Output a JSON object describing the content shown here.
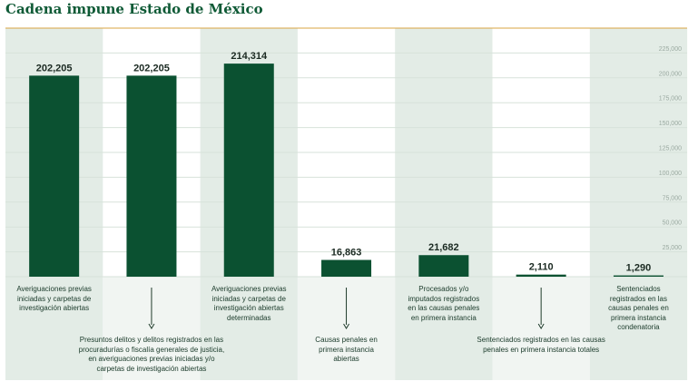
{
  "chart_data": {
    "type": "bar",
    "title": "Cadena impune Estado de México",
    "categories": [
      "Averiguaciones previas iniciadas y carpetas de investigación abiertas",
      "Presuntos delitos y delitos registrados en las procuradurías o fiscalía generales de justicia, en averiguaciones previas iniciadas y/o carpetas de investigación abiertas",
      "Averiguaciones previas iniciadas y carpetas de investigación abiertas determinadas",
      "Causas penales en primera instancia abiertas",
      "Procesados y/o imputados registrados en las causas penales en primera instancia",
      "Sentenciados registrados en las causas penales en primera instancia totales",
      "Sentenciados registrados en las causas penales en primera instancia condenatoria"
    ],
    "values": [
      202205,
      202205,
      214314,
      16863,
      21682,
      2110,
      1290
    ],
    "value_labels": [
      "202,205",
      "202,205",
      "214,314",
      "16,863",
      "21,682",
      "2,110",
      "1,290"
    ],
    "ylim": [
      0,
      250000
    ],
    "yticks": [
      25000,
      50000,
      75000,
      100000,
      125000,
      150000,
      175000,
      200000,
      225000
    ],
    "ytick_labels": [
      "25,000",
      "50,000",
      "75,000",
      "100,000",
      "125,000",
      "150,000",
      "175,000",
      "200,000",
      "225,000"
    ],
    "grid": true,
    "xlabel": "",
    "ylabel": "",
    "bar_color": "#0b5131",
    "shade_color": "#e3ece6",
    "grid_color": "#d7e2da",
    "accent_color": "#d9a441",
    "descriptions": [
      "Averiguaciones previas\niniciadas y carpetas de\ninvestigación abiertas",
      "Presuntos delitos y delitos registrados en las\nprocuradurías o fiscalía generales de justicia,\nen averiguaciones previas iniciadas y/o\ncarpetas de investigación abiertas",
      "Averiguaciones previas\niniciadas y carpetas de\ninvestigación abiertas\ndeterminadas",
      "Causas penales en\nprimera instancia\nabiertas",
      "Procesados y/o\nimputados registrados\nen las causas penales\nen primera instancia",
      "Sentenciados registrados en las causas\npenales en primera instancia totales",
      "Sentenciados\nregistrados en las\ncausas penales en\nprimera instancia\ncondenatoria"
    ]
  }
}
